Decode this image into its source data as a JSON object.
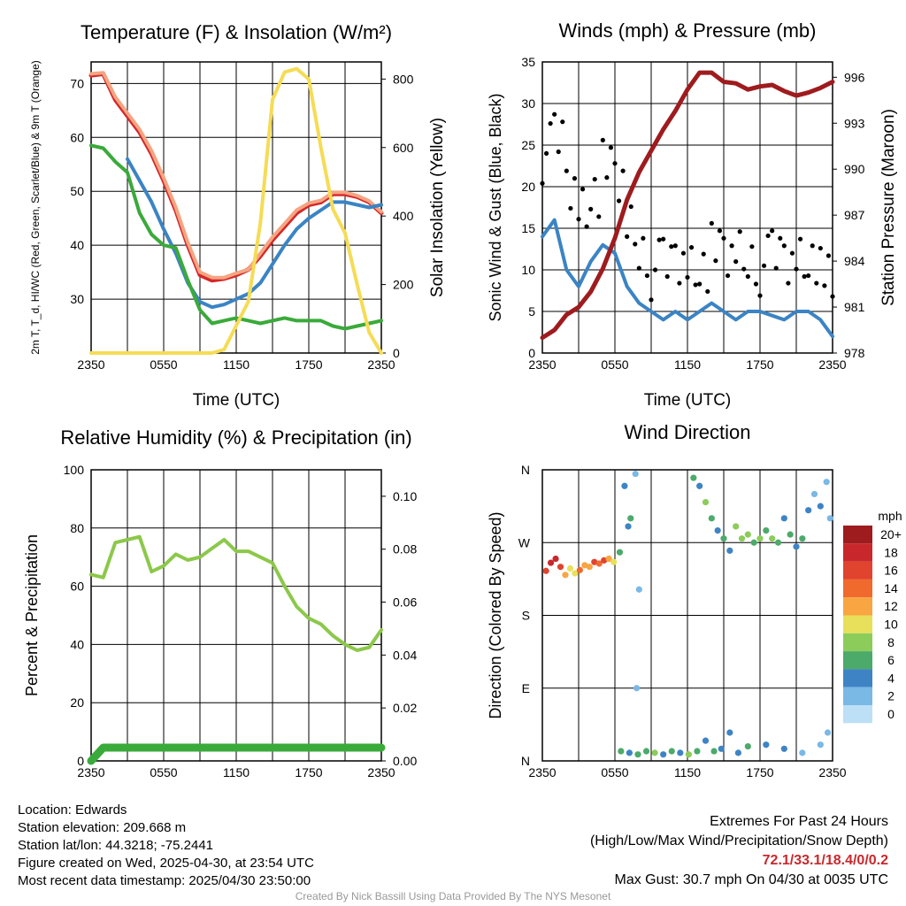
{
  "panels": {
    "temp": {
      "title": "Temperature (F) & Insolation (W/m²)",
      "ylabel_left": "2m T, T_d, HI/WC (Red, Green, Scarlet/Blue) & 9m T (Orange)",
      "ylabel_right": "Solar Insolation (Yellow)",
      "xlabel": "Time (UTC)"
    },
    "wind": {
      "title": "Winds (mph) & Pressure (mb)",
      "ylabel_left": "Sonic Wind & Gust (Blue, Black)",
      "ylabel_right": "Station Pressure (Maroon)",
      "xlabel": "Time (UTC)"
    },
    "rh": {
      "title": "Relative Humidity (%) & Precipitation (in)",
      "ylabel_left": "Percent & Precipitation"
    },
    "dir": {
      "title": "Wind Direction",
      "ylabel_left": "Direction (Colored By Speed)",
      "legend_title": "mph",
      "legend_labels": [
        "20+",
        "18",
        "16",
        "14",
        "12",
        "10",
        "8",
        "6",
        "4",
        "2",
        "0"
      ],
      "legend_colors": [
        "#9e1b1e",
        "#c8282c",
        "#e0442e",
        "#f06a2e",
        "#f8a542",
        "#e8e05a",
        "#8ccc5a",
        "#4caa6a",
        "#3e84c4",
        "#7ab8e6",
        "#bde0f6"
      ]
    }
  },
  "info": {
    "location": "Location: Edwards",
    "elevation": "Station elevation: 209.668 m",
    "latlon": "Station lat/lon: 44.3218; -75.2441",
    "created": "Figure created on Wed, 2025-04-30, at 23:54 UTC",
    "recent": "Most recent data timestamp: 2025/04/30 23:50:00",
    "extremes_title": "Extremes For Past 24 Hours",
    "extremes_sub": "(High/Low/Max Wind/Precipitation/Snow Depth)",
    "extremes_values": "72.1/33.1/18.4/0/0.2",
    "max_gust": "Max Gust: 30.7 mph On 04/30 at 0035 UTC",
    "credit": "Created By Nick Bassill Using Data Provided By The NYS Mesonet"
  },
  "chart_data": [
    {
      "type": "line",
      "title": "Temperature (F) & Insolation (W/m²)",
      "xlabel": "Time (UTC)",
      "ylabel": "2m T, T_d, HI/WC (Red, Green, Scarlet/Blue) & 9m T (Orange)",
      "ylabel_right": "Solar Insolation (Yellow)",
      "x_ticks": [
        "2350",
        "0550",
        "1150",
        "1750",
        "2350"
      ],
      "xlim_hours": [
        0,
        24
      ],
      "ylim": [
        20,
        74
      ],
      "y_ticks": [
        30,
        40,
        50,
        60,
        70
      ],
      "ylim_right": [
        0,
        850
      ],
      "y_ticks_right": [
        0,
        200,
        400,
        600,
        800
      ],
      "grid": true,
      "x_hours": [
        0,
        1,
        2,
        3,
        4,
        5,
        6,
        7,
        8,
        9,
        10,
        11,
        12,
        13,
        14,
        15,
        16,
        17,
        18,
        19,
        20,
        21,
        22,
        23,
        24
      ],
      "series": [
        {
          "color": "#d62728",
          "values": [
            71.5,
            71.8,
            67,
            64,
            61,
            57,
            52,
            46.5,
            40,
            34.5,
            33.5,
            33.8,
            34.5,
            35.5,
            38,
            41,
            43.5,
            46,
            47.5,
            48,
            49.5,
            49.5,
            49,
            48,
            46
          ]
        },
        {
          "color": "#f4a582",
          "values": [
            71.8,
            72,
            67.5,
            64.5,
            61.5,
            57.5,
            52.5,
            47,
            40.5,
            35,
            34,
            34,
            34.8,
            35.5,
            38.5,
            41.5,
            44,
            46.5,
            47.8,
            48.3,
            49.8,
            49.8,
            49.2,
            48.2,
            46.2
          ]
        },
        {
          "color": "#3b84c4",
          "values": [
            null,
            null,
            null,
            56,
            52,
            48,
            43,
            38.5,
            33,
            29.5,
            28.5,
            29,
            30,
            31,
            33,
            36.5,
            40,
            43,
            45,
            46.5,
            48,
            48,
            47.5,
            47,
            47.5
          ]
        },
        {
          "color": "#3aaa3a",
          "values": [
            58.5,
            58,
            55.5,
            53.5,
            46,
            42,
            40,
            39.5,
            33.5,
            28,
            25.5,
            26,
            26.5,
            26,
            25.5,
            26,
            26.5,
            26,
            26,
            26,
            25,
            24.5,
            25,
            25.5,
            26
          ]
        },
        {
          "color": "#f5dc55",
          "axis": "right",
          "values": [
            0,
            0,
            0,
            0,
            0,
            0,
            0,
            0,
            0,
            0,
            0,
            10,
            80,
            150,
            380,
            740,
            820,
            830,
            800,
            600,
            420,
            350,
            200,
            60,
            0
          ]
        }
      ]
    },
    {
      "type": "line",
      "title": "Winds (mph) & Pressure (mb)",
      "xlabel": "Time (UTC)",
      "ylabel": "Sonic Wind & Gust (Blue, Black)",
      "ylabel_right": "Station Pressure (Maroon)",
      "x_ticks": [
        "2350",
        "0550",
        "1150",
        "1750",
        "2350"
      ],
      "xlim_hours": [
        0,
        24
      ],
      "ylim": [
        0,
        35
      ],
      "y_ticks": [
        0,
        5,
        10,
        15,
        20,
        25,
        30,
        35
      ],
      "ylim_right": [
        978,
        997
      ],
      "y_ticks_right": [
        978,
        981,
        984,
        987,
        990,
        993,
        996
      ],
      "grid": true,
      "x_hours": [
        0,
        1,
        2,
        3,
        4,
        5,
        6,
        7,
        8,
        9,
        10,
        11,
        12,
        13,
        14,
        15,
        16,
        17,
        18,
        19,
        20,
        21,
        22,
        23,
        24
      ],
      "series": [
        {
          "color": "#3b84c4",
          "values": [
            14,
            16,
            10,
            8,
            11,
            13,
            12,
            8,
            6,
            5,
            4,
            5,
            4,
            5,
            6,
            5,
            4,
            5,
            5,
            4.5,
            4,
            5,
            5,
            4,
            2
          ]
        },
        {
          "color": "#000000",
          "style": "points",
          "values": [
            24,
            26,
            21,
            17,
            20,
            22,
            21,
            14,
            12,
            10,
            11,
            12,
            10,
            11,
            12,
            12,
            11,
            11,
            10.5,
            12,
            12,
            11,
            12,
            9,
            5
          ]
        },
        {
          "color": "#9e1b1e",
          "axis": "right",
          "values": [
            979,
            979.5,
            980.5,
            981,
            982,
            983.5,
            985.5,
            988,
            989.8,
            991.2,
            992.6,
            993.8,
            995.2,
            996.3,
            996.3,
            995.7,
            995.6,
            995.2,
            995.4,
            995.5,
            995.1,
            994.8,
            995,
            995.3,
            995.7
          ]
        }
      ]
    },
    {
      "type": "line",
      "title": "Relative Humidity (%) & Precipitation (in)",
      "ylabel": "Percent & Precipitation",
      "x_ticks": [
        "2350",
        "0550",
        "1150",
        "1750",
        "2350"
      ],
      "xlim_hours": [
        0,
        24
      ],
      "ylim": [
        0,
        100
      ],
      "y_ticks": [
        0,
        20,
        40,
        60,
        80,
        100
      ],
      "ylim_right": [
        0,
        0.11
      ],
      "y_ticks_right": [
        0.0,
        0.02,
        0.04,
        0.06,
        0.08,
        0.1
      ],
      "grid": true,
      "x_hours": [
        0,
        1,
        2,
        3,
        4,
        5,
        6,
        7,
        8,
        9,
        10,
        11,
        12,
        13,
        14,
        15,
        16,
        17,
        18,
        19,
        20,
        21,
        22,
        23,
        24
      ],
      "series": [
        {
          "color": "#8cc84a",
          "values": [
            64,
            63,
            75,
            76,
            77,
            65,
            67,
            71,
            69,
            70,
            73,
            76,
            72,
            72,
            70,
            68,
            60,
            53,
            49,
            47,
            43,
            40,
            38,
            39,
            45
          ]
        },
        {
          "color": "#3aaa3a",
          "axis": "right",
          "values": [
            0,
            0.005,
            0.005,
            0.005,
            0.005,
            0.005,
            0.005,
            0.005,
            0.005,
            0.005,
            0.005,
            0.005,
            0.005,
            0.005,
            0.005,
            0.005,
            0.005,
            0.005,
            0.005,
            0.005,
            0.005,
            0.005,
            0.005,
            0.005,
            0.005
          ]
        }
      ]
    },
    {
      "type": "scatter",
      "title": "Wind Direction",
      "ylabel": "Direction (Colored By Speed)",
      "x_ticks": [
        "2350",
        "0550",
        "1150",
        "1750",
        "2350"
      ],
      "xlim_hours": [
        0,
        24
      ],
      "y_categories": [
        "N",
        "E",
        "S",
        "W",
        "N"
      ],
      "ylim_degrees": [
        0,
        360
      ],
      "grid": true,
      "legend_title": "mph",
      "legend_position": "right",
      "points": [
        {
          "hour": 0.3,
          "deg": 235,
          "mph": 15
        },
        {
          "hour": 0.7,
          "deg": 245,
          "mph": 17
        },
        {
          "hour": 1.1,
          "deg": 250,
          "mph": 18
        },
        {
          "hour": 1.5,
          "deg": 240,
          "mph": 16
        },
        {
          "hour": 1.9,
          "deg": 230,
          "mph": 12
        },
        {
          "hour": 2.3,
          "deg": 238,
          "mph": 10
        },
        {
          "hour": 2.7,
          "deg": 232,
          "mph": 9
        },
        {
          "hour": 3.1,
          "deg": 236,
          "mph": 13
        },
        {
          "hour": 3.5,
          "deg": 242,
          "mph": 11
        },
        {
          "hour": 3.9,
          "deg": 240,
          "mph": 12
        },
        {
          "hour": 4.3,
          "deg": 246,
          "mph": 16
        },
        {
          "hour": 4.7,
          "deg": 244,
          "mph": 14
        },
        {
          "hour": 5.1,
          "deg": 248,
          "mph": 15
        },
        {
          "hour": 5.5,
          "deg": 250,
          "mph": 12
        },
        {
          "hour": 5.9,
          "deg": 246,
          "mph": 9
        },
        {
          "hour": 6.4,
          "deg": 258,
          "mph": 6
        },
        {
          "hour": 6.8,
          "deg": 340,
          "mph": 4
        },
        {
          "hour": 7.1,
          "deg": 290,
          "mph": 3
        },
        {
          "hour": 7.3,
          "deg": 300,
          "mph": 5
        },
        {
          "hour": 7.7,
          "deg": 355,
          "mph": 2
        },
        {
          "hour": 8.0,
          "deg": 212,
          "mph": 2
        },
        {
          "hour": 7.8,
          "deg": 90,
          "mph": 1
        },
        {
          "hour": 6.5,
          "deg": 12,
          "mph": 5
        },
        {
          "hour": 7.2,
          "deg": 10,
          "mph": 4
        },
        {
          "hour": 7.9,
          "deg": 8,
          "mph": 6
        },
        {
          "hour": 8.6,
          "deg": 12,
          "mph": 5
        },
        {
          "hour": 9.3,
          "deg": 10,
          "mph": 7
        },
        {
          "hour": 10.0,
          "deg": 8,
          "mph": 4
        },
        {
          "hour": 10.7,
          "deg": 12,
          "mph": 6
        },
        {
          "hour": 11.4,
          "deg": 10,
          "mph": 3
        },
        {
          "hour": 12.1,
          "deg": 8,
          "mph": 8
        },
        {
          "hour": 12.8,
          "deg": 12,
          "mph": 5
        },
        {
          "hour": 13.5,
          "deg": 25,
          "mph": 4
        },
        {
          "hour": 14.2,
          "deg": 12,
          "mph": 6
        },
        {
          "hour": 14.8,
          "deg": 15,
          "mph": 3
        },
        {
          "hour": 15.5,
          "deg": 35,
          "mph": 4
        },
        {
          "hour": 16.2,
          "deg": 10,
          "mph": 3
        },
        {
          "hour": 17.0,
          "deg": 18,
          "mph": 5
        },
        {
          "hour": 18.5,
          "deg": 20,
          "mph": 4
        },
        {
          "hour": 20.0,
          "deg": 15,
          "mph": 3
        },
        {
          "hour": 21.5,
          "deg": 10,
          "mph": 2
        },
        {
          "hour": 23.0,
          "deg": 20,
          "mph": 1
        },
        {
          "hour": 23.6,
          "deg": 35,
          "mph": 2
        },
        {
          "hour": 12.5,
          "deg": 350,
          "mph": 5
        },
        {
          "hour": 13.0,
          "deg": 340,
          "mph": 4
        },
        {
          "hour": 13.5,
          "deg": 320,
          "mph": 7
        },
        {
          "hour": 14.0,
          "deg": 300,
          "mph": 6
        },
        {
          "hour": 14.5,
          "deg": 285,
          "mph": 4
        },
        {
          "hour": 15.0,
          "deg": 275,
          "mph": 6
        },
        {
          "hour": 15.5,
          "deg": 260,
          "mph": 4
        },
        {
          "hour": 16.0,
          "deg": 290,
          "mph": 7
        },
        {
          "hour": 16.5,
          "deg": 275,
          "mph": 8
        },
        {
          "hour": 17.0,
          "deg": 280,
          "mph": 7
        },
        {
          "hour": 17.5,
          "deg": 270,
          "mph": 6
        },
        {
          "hour": 18.0,
          "deg": 275,
          "mph": 8
        },
        {
          "hour": 18.5,
          "deg": 285,
          "mph": 6
        },
        {
          "hour": 19.0,
          "deg": 275,
          "mph": 7
        },
        {
          "hour": 19.5,
          "deg": 270,
          "mph": 5
        },
        {
          "hour": 20.0,
          "deg": 300,
          "mph": 4
        },
        {
          "hour": 20.5,
          "deg": 280,
          "mph": 6
        },
        {
          "hour": 21.0,
          "deg": 265,
          "mph": 4
        },
        {
          "hour": 21.5,
          "deg": 275,
          "mph": 5
        },
        {
          "hour": 22.0,
          "deg": 310,
          "mph": 3
        },
        {
          "hour": 22.5,
          "deg": 330,
          "mph": 2
        },
        {
          "hour": 23.0,
          "deg": 315,
          "mph": 3
        },
        {
          "hour": 23.5,
          "deg": 345,
          "mph": 2
        },
        {
          "hour": 23.8,
          "deg": 300,
          "mph": 2
        }
      ]
    }
  ]
}
